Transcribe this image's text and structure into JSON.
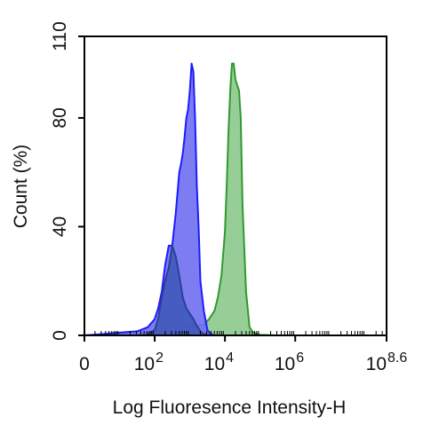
{
  "chart_data": {
    "type": "area",
    "title": "",
    "xlabel": "Log Fluoresence Intensity-H",
    "ylabel": "Count  (%)",
    "xscale": "log10",
    "xlim": [
      0,
      8.6
    ],
    "ylim": [
      0,
      110
    ],
    "grid": false,
    "legend": "none",
    "x_ticks": [
      {
        "value": 0,
        "base": "0",
        "exp": ""
      },
      {
        "value": 2,
        "base": "10",
        "exp": "2"
      },
      {
        "value": 4,
        "base": "10",
        "exp": "4"
      },
      {
        "value": 6,
        "base": "10",
        "exp": "6"
      },
      {
        "value": 8.6,
        "base": "10",
        "exp": "8.6"
      }
    ],
    "y_ticks": [
      {
        "value": 0,
        "label": "0"
      },
      {
        "value": 40,
        "label": "40"
      },
      {
        "value": 80,
        "label": "80"
      },
      {
        "value": 110,
        "label": "110"
      }
    ],
    "series": [
      {
        "color": "#2f9a2f",
        "fill": "#8cc98c",
        "x": [
          0.0,
          0.5,
          1.0,
          1.5,
          2.0,
          2.3,
          2.6,
          2.9,
          3.2,
          3.4,
          3.55,
          3.7,
          3.8,
          3.9,
          4.0,
          4.05,
          4.1,
          4.15,
          4.2,
          4.25,
          4.3,
          4.35,
          4.4,
          4.45,
          4.5,
          4.6,
          4.7,
          4.8,
          5.0,
          5.5,
          6.0,
          7.0,
          8.6
        ],
        "y": [
          0,
          0.3,
          0.4,
          0.5,
          1.0,
          3.0,
          5.5,
          4.0,
          3.5,
          4.0,
          6.0,
          9.0,
          14.0,
          22.0,
          38.0,
          55.0,
          75.0,
          90.0,
          100.0,
          100.0,
          94.0,
          92.0,
          90.0,
          80.0,
          48.0,
          16.0,
          3.0,
          1.0,
          0.2,
          0,
          0,
          0,
          0
        ]
      },
      {
        "color": "#1c1cff",
        "fill": "#6f6ff0",
        "x": [
          0.0,
          0.5,
          1.0,
          1.5,
          1.8,
          2.0,
          2.1,
          2.2,
          2.3,
          2.4,
          2.5,
          2.6,
          2.7,
          2.75,
          2.8,
          2.85,
          2.9,
          2.95,
          3.0,
          3.05,
          3.1,
          3.15,
          3.2,
          3.25,
          3.3,
          3.4,
          3.5,
          3.6,
          3.7,
          4.0,
          5.0,
          8.6
        ],
        "y": [
          0,
          0.5,
          1.0,
          1.5,
          3.0,
          6.0,
          10.0,
          16.0,
          26.0,
          33.0,
          33.0,
          45.0,
          60.0,
          63.0,
          67.0,
          73.0,
          80.0,
          83.0,
          90.0,
          100.0,
          97.0,
          80.0,
          55.0,
          40.0,
          20.0,
          9.0,
          2.0,
          0.5,
          0,
          0,
          0,
          0
        ]
      },
      {
        "color": "#2b3f9a",
        "fill": "#3d56b8",
        "x": [
          1.8,
          2.0,
          2.1,
          2.2,
          2.3,
          2.4,
          2.5,
          2.6,
          2.7,
          2.8,
          2.9,
          3.0,
          3.1,
          3.2,
          3.3,
          3.4,
          3.6
        ],
        "y": [
          0.5,
          2.0,
          6.0,
          14.0,
          20.0,
          25.0,
          33.0,
          29.0,
          22.0,
          14.0,
          10.0,
          8.0,
          6.0,
          3.5,
          1.5,
          0.5,
          0
        ]
      }
    ]
  }
}
